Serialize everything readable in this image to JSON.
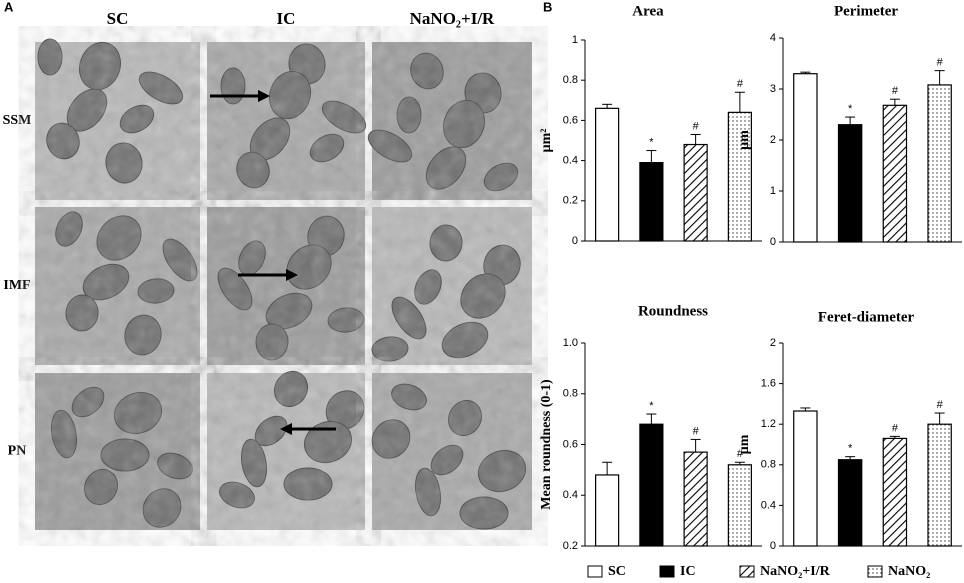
{
  "panel_a": {
    "label": "A",
    "columns": [
      "SC",
      "IC",
      "NaNO₂+I/R"
    ],
    "rows": [
      "SSM",
      "IMF",
      "PN"
    ]
  },
  "panel_b": {
    "label": "B"
  },
  "legend": {
    "entries": [
      {
        "name": "SC",
        "color": "#ffffff",
        "pattern": "solid"
      },
      {
        "name": "IC",
        "color": "#000000",
        "pattern": "solid"
      },
      {
        "name": "NaNO₂+I/R",
        "color": "#ffffff",
        "pattern": "hatch"
      },
      {
        "name": "NaNO₂",
        "color": "#ffffff",
        "pattern": "dots"
      }
    ]
  },
  "chart_data": [
    {
      "type": "bar",
      "title": "Area",
      "y_label": "µm²",
      "values": [
        0.66,
        0.39,
        0.48,
        0.64
      ],
      "errors": [
        0.02,
        0.06,
        0.05,
        0.1
      ],
      "markers": [
        null,
        "*",
        "#",
        "#"
      ],
      "ylim": [
        0,
        1
      ],
      "yticks": [
        0,
        0.2,
        0.4,
        0.6,
        0.8,
        1
      ]
    },
    {
      "type": "bar",
      "title": "Perimeter",
      "y_label": "µm",
      "values": [
        3.3,
        2.3,
        2.68,
        3.08
      ],
      "errors": [
        0.03,
        0.15,
        0.12,
        0.28
      ],
      "markers": [
        null,
        "*",
        "#",
        "#"
      ],
      "ylim": [
        0,
        4
      ],
      "yticks": [
        0,
        1,
        2,
        3,
        4
      ]
    },
    {
      "type": "bar",
      "title": "Roundness",
      "y_label": "Mean roundness (0-1)",
      "values": [
        0.48,
        0.68,
        0.57,
        0.52
      ],
      "errors": [
        0.05,
        0.04,
        0.05,
        0.01
      ],
      "markers": [
        null,
        "*",
        "#",
        "#"
      ],
      "ylim": [
        0.2,
        1
      ],
      "yticks": [
        0.2,
        0.4,
        0.6,
        0.8,
        {
          "value": 1,
          "label": "1.0"
        }
      ]
    },
    {
      "type": "bar",
      "title": "Feret-diameter",
      "y_label": "µm",
      "values": [
        1.33,
        0.85,
        1.06,
        1.2
      ],
      "errors": [
        0.03,
        0.03,
        0.02,
        0.11
      ],
      "markers": [
        null,
        "*",
        "#",
        "#"
      ],
      "ylim": [
        0,
        2
      ],
      "yticks": [
        0,
        0.4,
        0.8,
        1.2,
        1.6,
        2
      ]
    }
  ]
}
